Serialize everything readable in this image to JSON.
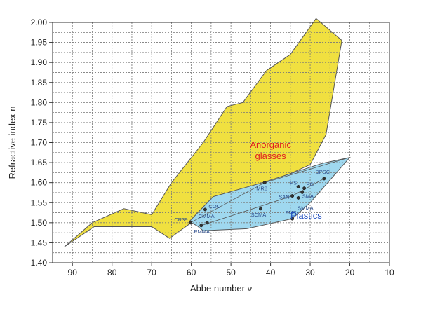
{
  "chart_data": {
    "type": "scatter",
    "xlabel": "Abbe number ν",
    "ylabel": "Refractive index n",
    "xlim": [
      10,
      95
    ],
    "xlim_display": "reversed",
    "ylim": [
      1.4,
      2.0
    ],
    "x_ticks": [
      "90",
      "80",
      "70",
      "60",
      "50",
      "40",
      "30",
      "20",
      "10"
    ],
    "y_ticks": [
      "2.00",
      "1.95",
      "1.90",
      "1.85",
      "1.80",
      "1.75",
      "1.70",
      "1.65",
      "1.60",
      "1.55",
      "1.50",
      "1.45",
      "1.40"
    ],
    "grid": true,
    "regions": [
      {
        "label_lines": [
          "Anorganic",
          "glasses"
        ],
        "fill": "#f0e040",
        "label_color": "#e02020",
        "label_at": [
          40,
          1.687
        ],
        "polygon": [
          [
            92,
            1.44
          ],
          [
            85,
            1.5
          ],
          [
            77,
            1.535
          ],
          [
            70,
            1.52
          ],
          [
            65,
            1.6
          ],
          [
            57,
            1.7
          ],
          [
            51,
            1.79
          ],
          [
            47,
            1.8
          ],
          [
            41,
            1.88
          ],
          [
            35,
            1.92
          ],
          [
            28.5,
            2.01
          ],
          [
            22,
            1.955
          ],
          [
            26,
            1.72
          ],
          [
            30,
            1.645
          ],
          [
            40,
            1.6
          ],
          [
            55,
            1.49
          ],
          [
            60,
            1.5
          ],
          [
            65.5,
            1.461
          ],
          [
            70,
            1.49
          ],
          [
            84.5,
            1.49
          ]
        ]
      },
      {
        "label_lines": [
          "Plastics"
        ],
        "fill": "#9fd8ef",
        "label_color": "#2050c0",
        "label_at": [
          31,
          1.51
        ],
        "polygon": [
          [
            60.5,
            1.503
          ],
          [
            54.5,
            1.565
          ],
          [
            42,
            1.6
          ],
          [
            27,
            1.648
          ],
          [
            20,
            1.663
          ],
          [
            30,
            1.55
          ],
          [
            34.5,
            1.51
          ],
          [
            46,
            1.485
          ],
          [
            57,
            1.48
          ],
          [
            58.5,
            1.492
          ]
        ]
      }
    ],
    "series": [
      {
        "points": [
          {
            "label": "CR39",
            "x": 60.2,
            "y": 1.5
          },
          {
            "label": "COC",
            "x": 56.5,
            "y": 1.533
          },
          {
            "label": "CMMA",
            "x": 56.0,
            "y": 1.5
          },
          {
            "label": "PMMA",
            "x": 57.5,
            "y": 1.493
          },
          {
            "label": "MR8",
            "x": 41.5,
            "y": 1.6
          },
          {
            "label": "SCMA",
            "x": 42.5,
            "y": 1.535
          },
          {
            "label": "SAN",
            "x": 34.5,
            "y": 1.567
          },
          {
            "label": "PS",
            "x": 33.0,
            "y": 1.59
          },
          {
            "label": "PC",
            "x": 31.5,
            "y": 1.586
          },
          {
            "label": "SMA",
            "x": 32.0,
            "y": 1.576
          },
          {
            "label": "SMMA",
            "x": 33.0,
            "y": 1.562
          },
          {
            "label": "DPSC",
            "x": 26.5,
            "y": 1.61
          },
          {
            "label": "FMS",
            "x": 34.5,
            "y": 1.51
          }
        ]
      }
    ]
  }
}
